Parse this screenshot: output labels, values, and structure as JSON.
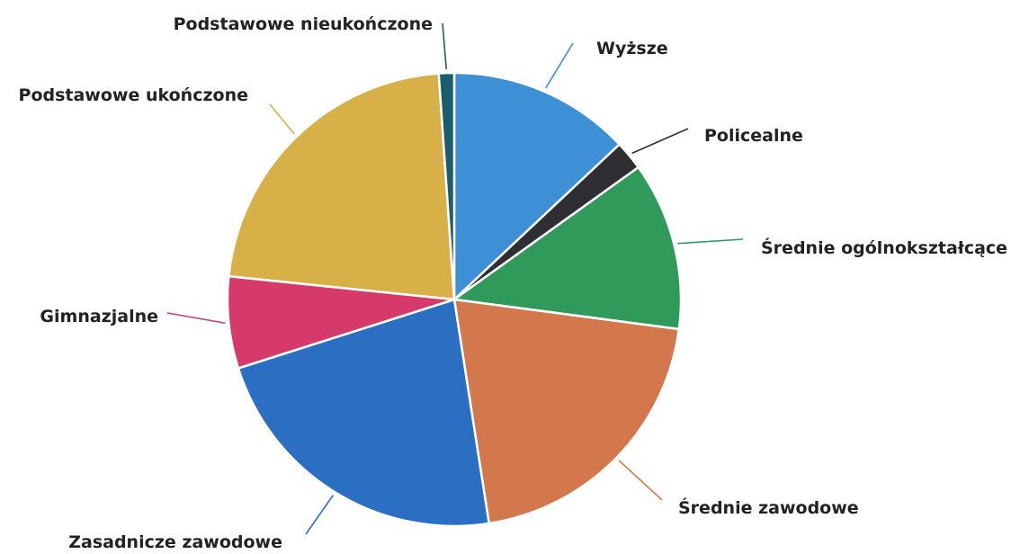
{
  "chart_data": {
    "type": "pie",
    "title": "",
    "legend": "none",
    "slices": [
      {
        "label": "Wyższe",
        "value": 14.3,
        "color": "#3d8fd6"
      },
      {
        "label": "Policealne",
        "value": 2.3,
        "color": "#2e2e33"
      },
      {
        "label": "Średnie ogólnokształcące",
        "value": 13.2,
        "color": "#2f9a5a"
      },
      {
        "label": "Średnie zawodowe",
        "value": 22.5,
        "color": "#d2784c"
      },
      {
        "label": "Zasadnicze zawodowe",
        "value": 24.8,
        "color": "#2b6fc2"
      },
      {
        "label": "Gimnazjalne",
        "value": 7.2,
        "color": "#d63a6a"
      },
      {
        "label": "Podstawowe ukończone",
        "value": 24.5,
        "color": "#d7b148"
      },
      {
        "label": "Podstawowe nieukończone",
        "value": 1.2,
        "color": "#1a5e6e"
      }
    ]
  }
}
